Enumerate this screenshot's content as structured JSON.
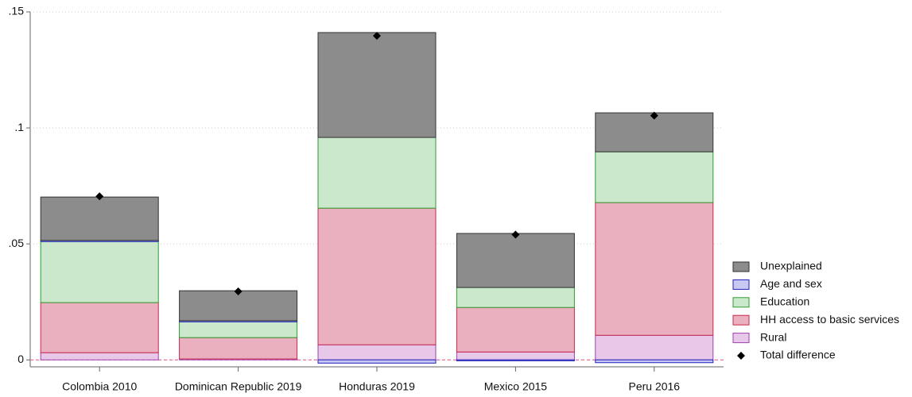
{
  "chart_data": {
    "type": "stacked_bar",
    "categories": [
      "Colombia 2010",
      "Dominican Republic 2019",
      "Honduras 2019",
      "Mexico 2015",
      "Peru 2016"
    ],
    "series": [
      {
        "name": "Rural",
        "color": "#e8c8e8",
        "edge_color": "#a040b0",
        "values": [
          0.0031,
          0.0004,
          0.0065,
          0.0034,
          0.0106
        ]
      },
      {
        "name": "HH access to basic services",
        "color": "#ebb0bf",
        "edge_color": "#c8284a",
        "values": [
          0.0216,
          0.0092,
          0.0589,
          0.0192,
          0.0572
        ]
      },
      {
        "name": "Education",
        "color": "#cce8cc",
        "edge_color": "#2e9e2e",
        "values": [
          0.0263,
          0.0068,
          0.0305,
          0.0086,
          0.0219
        ]
      },
      {
        "name": "Age and sex",
        "color": "#c8c8f0",
        "edge_color": "#2020c0",
        "values": [
          0.0005,
          0.0005,
          -0.0014,
          -0.0004,
          -0.0012
        ]
      },
      {
        "name": "Unexplained",
        "color": "#8c8c8c",
        "edge_color": "#333333",
        "values": [
          0.0187,
          0.0129,
          0.0452,
          0.0233,
          0.0168
        ]
      }
    ],
    "markers": {
      "name": "Total difference",
      "color": "#000000",
      "values": [
        0.0705,
        0.0295,
        0.1397,
        0.054,
        0.1053
      ]
    },
    "ylim": [
      -0.003,
      0.15
    ],
    "yticks": [
      0,
      {
        "value": 0.05,
        "label": ".05"
      },
      {
        "value": 0.1,
        "label": ".1"
      },
      {
        "value": 0.15,
        "label": ".15"
      }
    ],
    "grid": true,
    "legend": "right"
  }
}
